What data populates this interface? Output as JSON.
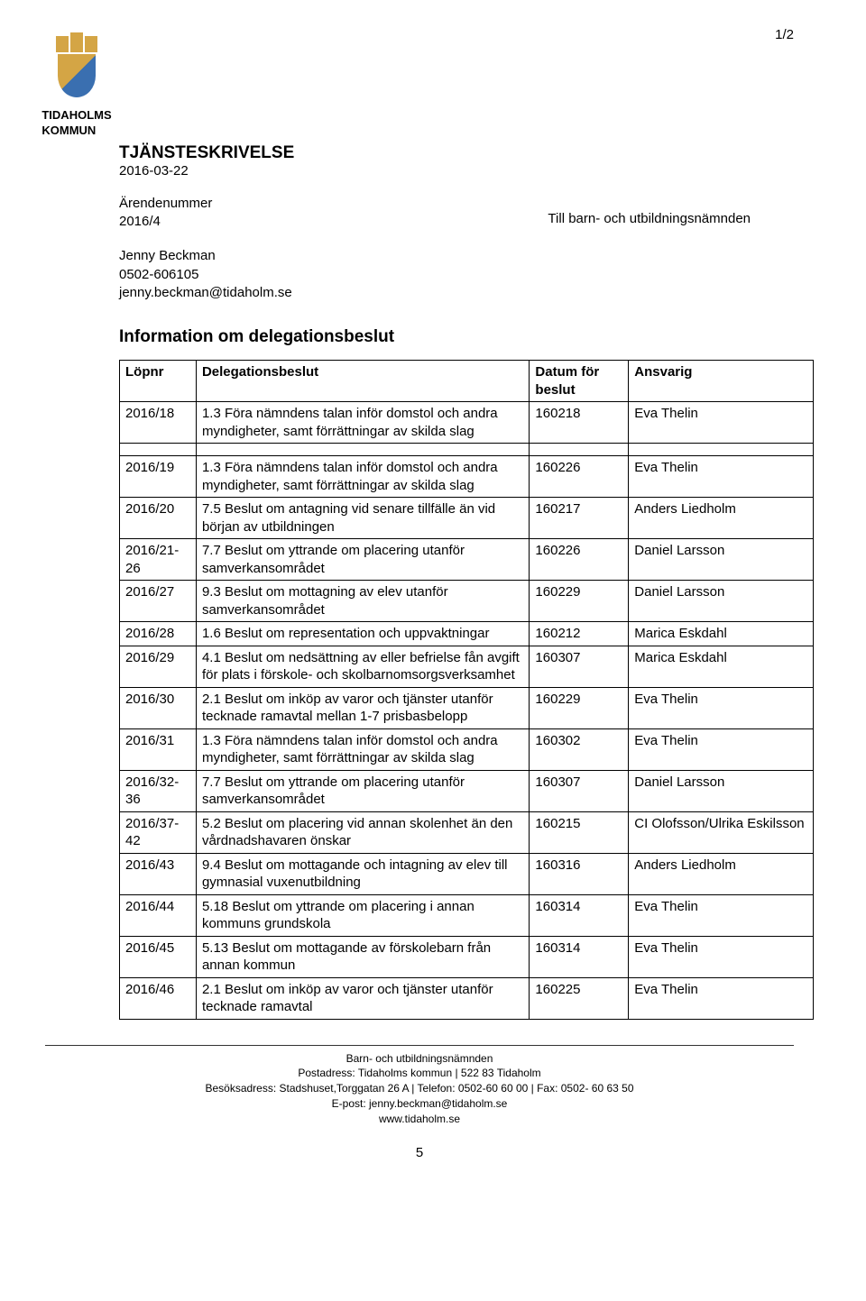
{
  "page_marker": "1/2",
  "org": {
    "line1": "TIDAHOLMS",
    "line2": "KOMMUN"
  },
  "doc": {
    "title": "TJÄNSTESKRIVELSE",
    "date": "2016-03-22",
    "arendenummer_label": "Ärendenummer",
    "arendenummer": "2016/4",
    "recipient": "Till barn- och utbildningsnämnden",
    "contact_name": "Jenny Beckman",
    "contact_phone": "0502-606105",
    "contact_email": "jenny.beckman@tidaholm.se",
    "main_heading": "Information om delegationsbeslut"
  },
  "table": {
    "headers": {
      "lopnr": "Löpnr",
      "delegationsbeslut": "Delegationsbeslut",
      "datum": "Datum för beslut",
      "ansvarig": "Ansvarig"
    },
    "rows": [
      {
        "lopnr": "2016/18",
        "deleg": "1.3 Föra nämndens talan inför domstol och andra myndigheter, samt förrättningar av skilda slag",
        "datum": "160218",
        "ansvarig": "Eva Thelin"
      },
      {
        "lopnr": "2016/19",
        "deleg": "1.3 Föra nämndens talan inför domstol och andra myndigheter, samt förrättningar av skilda slag",
        "datum": "160226",
        "ansvarig": "Eva Thelin"
      },
      {
        "lopnr": "2016/20",
        "deleg": "7.5 Beslut om antagning vid senare tillfälle än vid början av utbildningen",
        "datum": "160217",
        "ansvarig": "Anders Liedholm"
      },
      {
        "lopnr": "2016/21-26",
        "deleg": "7.7 Beslut om yttrande om placering utanför samverkansområdet",
        "datum": "160226",
        "ansvarig": "Daniel Larsson"
      },
      {
        "lopnr": "2016/27",
        "deleg": "9.3 Beslut om mottagning av elev utanför samverkansområdet",
        "datum": "160229",
        "ansvarig": "Daniel Larsson"
      },
      {
        "lopnr": "2016/28",
        "deleg": "1.6 Beslut om representation och uppvaktningar",
        "datum": "160212",
        "ansvarig": "Marica Eskdahl"
      },
      {
        "lopnr": "2016/29",
        "deleg": "4.1 Beslut om nedsättning av eller befrielse fån avgift för plats i förskole- och skolbarnomsorgsverksamhet",
        "datum": "160307",
        "ansvarig": "Marica Eskdahl"
      },
      {
        "lopnr": "2016/30",
        "deleg": "2.1 Beslut om inköp av varor och tjänster utanför tecknade ramavtal mellan 1-7 prisbasbelopp",
        "datum": "160229",
        "ansvarig": "Eva Thelin"
      },
      {
        "lopnr": "2016/31",
        "deleg": "1.3 Föra nämndens talan inför domstol och andra myndigheter, samt förrättningar av skilda slag",
        "datum": "160302",
        "ansvarig": "Eva Thelin"
      },
      {
        "lopnr": "2016/32-36",
        "deleg": "7.7 Beslut om yttrande om placering utanför samverkansområdet",
        "datum": "160307",
        "ansvarig": "Daniel Larsson"
      },
      {
        "lopnr": "2016/37-42",
        "deleg": "5.2 Beslut om placering vid annan skolenhet än den vårdnadshavaren önskar",
        "datum": "160215",
        "ansvarig": "CI Olofsson/Ulrika Eskilsson"
      },
      {
        "lopnr": "2016/43",
        "deleg": "9.4 Beslut om mottagande och intagning av elev till gymnasial vuxenutbildning",
        "datum": "160316",
        "ansvarig": "Anders Liedholm"
      },
      {
        "lopnr": "2016/44",
        "deleg": "5.18 Beslut om yttrande om placering i annan kommuns grundskola",
        "datum": "160314",
        "ansvarig": "Eva Thelin"
      },
      {
        "lopnr": "2016/45",
        "deleg": "5.13 Beslut om mottagande av förskolebarn från annan kommun",
        "datum": "160314",
        "ansvarig": "Eva Thelin"
      },
      {
        "lopnr": "2016/46",
        "deleg": "2.1 Beslut om inköp av varor och tjänster utanför tecknade ramavtal",
        "datum": "160225",
        "ansvarig": "Eva Thelin"
      }
    ]
  },
  "footer": {
    "line1": "Barn- och utbildningsnämnden",
    "line2": "Postadress: Tidaholms kommun  |  522 83 Tidaholm",
    "line3": "Besöksadress: Stadshuset,Torggatan 26 A  |  Telefon: 0502-60 60 00  |  Fax: 0502- 60 63 50",
    "line4": "E-post: jenny.beckman@tidaholm.se",
    "line5": "www.tidaholm.se",
    "page_number": "5"
  }
}
